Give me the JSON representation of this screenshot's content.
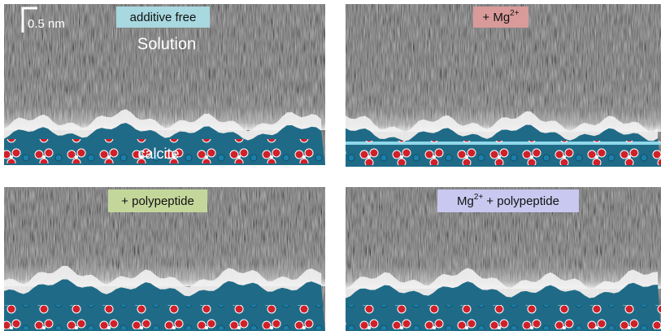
{
  "scale_bar": "0.5 nm",
  "panels": [
    {
      "label": [
        {
          "text": "additive free"
        }
      ],
      "top_label": "Solution",
      "bottom_label": "calcite"
    },
    {
      "label": [
        {
          "text": "+ Mg"
        },
        {
          "sup": "2+"
        }
      ]
    },
    {
      "label": [
        {
          "text": "+ polypeptide"
        }
      ]
    },
    {
      "label": [
        {
          "text": "Mg"
        },
        {
          "sup": "2+"
        },
        {
          "text": "+ polypeptide"
        }
      ]
    }
  ]
}
